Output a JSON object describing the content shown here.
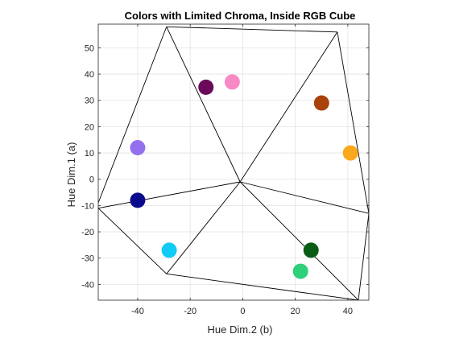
{
  "chart_data": {
    "type": "scatter",
    "title": "Colors with Limited Chroma, Inside RGB Cube",
    "xlabel": "Hue Dim.2 (b)",
    "ylabel": "Hue Dim.1 (a)",
    "xlim": [
      -55,
      48
    ],
    "ylim": [
      -46,
      59
    ],
    "xticks": [
      -40,
      -20,
      0,
      20,
      40
    ],
    "yticks": [
      -40,
      -30,
      -20,
      -10,
      0,
      10,
      20,
      30,
      40,
      50
    ],
    "grid": true,
    "points": [
      {
        "b": -14,
        "a": 35,
        "color": "#6b0a5a"
      },
      {
        "b": -4,
        "a": 37,
        "color": "#f78ac4"
      },
      {
        "b": 30,
        "a": 29,
        "color": "#a8420a"
      },
      {
        "b": -40,
        "a": 12,
        "color": "#9370ee"
      },
      {
        "b": 41,
        "a": 10,
        "color": "#fca81c"
      },
      {
        "b": -40,
        "a": -8,
        "color": "#0a0a8c"
      },
      {
        "b": -28,
        "a": -27,
        "color": "#0fcbf5"
      },
      {
        "b": 26,
        "a": -27,
        "color": "#0a5c14"
      },
      {
        "b": 22,
        "a": -35,
        "color": "#2ed07a"
      }
    ],
    "boundary_lines": [
      [
        [
          -1,
          -1
        ],
        [
          -55,
          -11
        ]
      ],
      [
        [
          -1,
          -1
        ],
        [
          -29,
          58
        ]
      ],
      [
        [
          -1,
          -1
        ],
        [
          -29,
          -36
        ]
      ],
      [
        [
          -1,
          -1
        ],
        [
          36,
          56
        ]
      ],
      [
        [
          -1,
          -1
        ],
        [
          48,
          -13
        ]
      ],
      [
        [
          -1,
          -1
        ],
        [
          44,
          -46
        ]
      ],
      [
        [
          -29,
          58
        ],
        [
          -55,
          -9
        ]
      ],
      [
        [
          -29,
          58
        ],
        [
          36,
          56
        ]
      ],
      [
        [
          36,
          56
        ],
        [
          48,
          -13
        ]
      ],
      [
        [
          48,
          -13
        ],
        [
          44,
          -46
        ]
      ],
      [
        [
          44,
          -46
        ],
        [
          -29,
          -36
        ]
      ],
      [
        [
          -29,
          -36
        ],
        [
          -55,
          -11
        ]
      ]
    ]
  }
}
